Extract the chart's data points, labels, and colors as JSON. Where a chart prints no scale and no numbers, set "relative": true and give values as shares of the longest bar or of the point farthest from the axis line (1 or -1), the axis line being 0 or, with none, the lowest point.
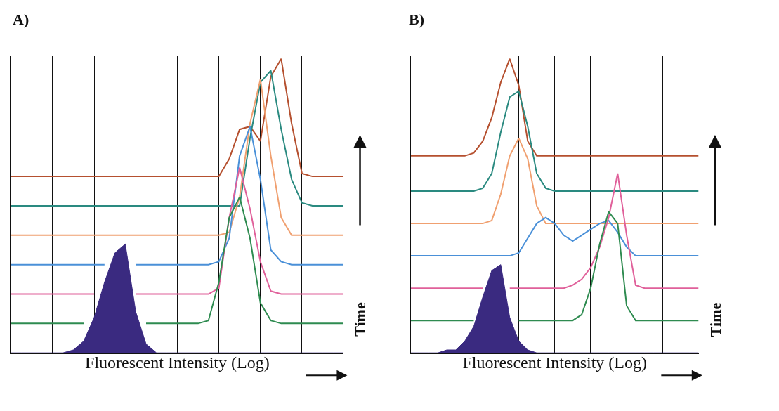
{
  "chart_data": [
    {
      "type": "line",
      "title": "A)",
      "xlabel": "Fluorescent Intensity (Log)",
      "ylabel": "Time",
      "relative": true,
      "grid": "x",
      "categories": [
        null,
        null,
        null,
        null,
        null,
        null,
        null,
        null,
        null,
        null,
        null,
        null,
        null,
        null,
        null,
        null,
        null,
        null,
        null,
        null,
        null,
        null,
        null,
        null,
        null,
        null,
        null,
        null,
        null,
        null,
        null,
        null,
        null
      ],
      "series": [
        {
          "color": "#b5502f",
          "values": [
            0.6,
            0.6,
            0.6,
            0.6,
            0.6,
            0.6,
            0.6,
            0.6,
            0.6,
            0.6,
            0.6,
            0.6,
            0.6,
            0.6,
            0.6,
            0.6,
            0.6,
            0.6,
            0.6,
            0.6,
            0.6,
            0.66,
            0.76,
            0.77,
            0.72,
            0.94,
            1.0,
            0.78,
            0.61,
            0.6,
            0.6,
            0.6,
            0.6
          ]
        },
        {
          "color": "#2a8a80",
          "values": [
            0.5,
            0.5,
            0.5,
            0.5,
            0.5,
            0.5,
            0.5,
            0.5,
            0.5,
            0.5,
            0.5,
            0.5,
            0.5,
            0.5,
            0.5,
            0.5,
            0.5,
            0.5,
            0.5,
            0.5,
            0.5,
            0.5,
            0.5,
            0.73,
            0.92,
            0.96,
            0.76,
            0.59,
            0.51,
            0.5,
            0.5,
            0.5,
            0.5
          ]
        },
        {
          "color": "#f0a070",
          "values": [
            0.4,
            0.4,
            0.4,
            0.4,
            0.4,
            0.4,
            0.4,
            0.4,
            0.4,
            0.4,
            0.4,
            0.4,
            0.4,
            0.4,
            0.4,
            0.4,
            0.4,
            0.4,
            0.4,
            0.4,
            0.4,
            0.41,
            0.53,
            0.78,
            0.93,
            0.67,
            0.46,
            0.4,
            0.4,
            0.4,
            0.4,
            0.4,
            0.4
          ]
        },
        {
          "color": "#4a90d8",
          "values": [
            0.3,
            0.3,
            0.3,
            0.3,
            0.3,
            0.3,
            0.3,
            0.3,
            0.3,
            0.3,
            null,
            null,
            0.3,
            0.3,
            0.3,
            0.3,
            0.3,
            0.3,
            0.3,
            0.3,
            0.31,
            0.39,
            0.67,
            0.77,
            0.59,
            0.35,
            0.31,
            0.3,
            0.3,
            0.3,
            0.3,
            0.3,
            0.3
          ]
        },
        {
          "color": "#e0609a",
          "values": [
            0.2,
            0.2,
            0.2,
            0.2,
            0.2,
            0.2,
            0.2,
            0.2,
            0.2,
            null,
            null,
            null,
            0.2,
            0.2,
            0.2,
            0.2,
            0.2,
            0.2,
            0.2,
            0.2,
            0.22,
            0.46,
            0.63,
            0.49,
            0.31,
            0.21,
            0.2,
            0.2,
            0.2,
            0.2,
            0.2,
            0.2,
            0.2
          ]
        },
        {
          "color": "#2e8b50",
          "values": [
            0.1,
            0.1,
            0.1,
            0.1,
            0.1,
            0.1,
            0.1,
            0.1,
            null,
            null,
            null,
            null,
            null,
            0.1,
            0.1,
            0.1,
            0.1,
            0.1,
            0.1,
            0.11,
            0.24,
            0.46,
            0.53,
            0.39,
            0.17,
            0.11,
            0.1,
            0.1,
            0.1,
            0.1,
            0.1,
            0.1,
            0.1
          ]
        },
        {
          "type": "area",
          "color": "#3a2a80",
          "values": [
            0,
            0,
            0,
            0,
            0,
            0,
            0.01,
            0.04,
            0.12,
            0.24,
            0.34,
            0.37,
            0.14,
            0.03,
            0,
            0,
            0,
            0,
            0,
            0,
            0,
            0,
            0,
            0,
            0,
            0,
            0,
            0,
            0,
            0,
            0,
            0,
            0
          ]
        }
      ]
    },
    {
      "type": "line",
      "title": "B)",
      "xlabel": "Fluorescent Intensity (Log)",
      "ylabel": "Time",
      "relative": true,
      "grid": "x",
      "categories": [
        null,
        null,
        null,
        null,
        null,
        null,
        null,
        null,
        null,
        null,
        null,
        null,
        null,
        null,
        null,
        null,
        null,
        null,
        null,
        null,
        null,
        null,
        null,
        null,
        null,
        null,
        null,
        null,
        null,
        null,
        null,
        null,
        null
      ],
      "series": [
        {
          "color": "#b5502f",
          "values": [
            0.67,
            0.67,
            0.67,
            0.67,
            0.67,
            0.67,
            0.67,
            0.68,
            0.72,
            0.8,
            0.92,
            1.0,
            0.91,
            0.72,
            0.67,
            0.67,
            0.67,
            0.67,
            0.67,
            0.67,
            0.67,
            0.67,
            0.67,
            0.67,
            0.67,
            0.67,
            0.67,
            0.67,
            0.67,
            0.67,
            0.67,
            0.67,
            0.67
          ]
        },
        {
          "color": "#2a8a80",
          "values": [
            0.55,
            0.55,
            0.55,
            0.55,
            0.55,
            0.55,
            0.55,
            0.55,
            0.56,
            0.61,
            0.75,
            0.87,
            0.89,
            0.77,
            0.61,
            0.56,
            0.55,
            0.55,
            0.55,
            0.55,
            0.55,
            0.55,
            0.55,
            0.55,
            0.55,
            0.55,
            0.55,
            0.55,
            0.55,
            0.55,
            0.55,
            0.55,
            0.55
          ]
        },
        {
          "color": "#f0a070",
          "values": [
            0.44,
            0.44,
            0.44,
            0.44,
            0.44,
            0.44,
            0.44,
            0.44,
            0.44,
            0.45,
            0.54,
            0.67,
            0.73,
            0.66,
            0.5,
            0.44,
            0.44,
            0.44,
            0.44,
            0.44,
            0.44,
            0.44,
            0.44,
            0.44,
            0.44,
            0.44,
            0.44,
            0.44,
            0.44,
            0.44,
            0.44,
            0.44,
            0.44
          ]
        },
        {
          "color": "#4a90d8",
          "values": [
            0.33,
            0.33,
            0.33,
            0.33,
            0.33,
            0.33,
            0.33,
            0.33,
            0.33,
            0.33,
            0.33,
            0.33,
            0.34,
            0.39,
            0.44,
            0.46,
            0.44,
            0.4,
            0.38,
            0.4,
            0.42,
            0.44,
            0.45,
            0.41,
            0.36,
            0.33,
            0.33,
            0.33,
            0.33,
            0.33,
            0.33,
            0.33,
            0.33
          ]
        },
        {
          "color": "#e0609a",
          "values": [
            0.22,
            0.22,
            0.22,
            0.22,
            0.22,
            0.22,
            0.22,
            0.22,
            0.22,
            null,
            null,
            0.22,
            0.22,
            0.22,
            0.22,
            0.22,
            0.22,
            0.22,
            0.23,
            0.25,
            0.29,
            0.36,
            0.46,
            0.61,
            0.4,
            0.23,
            0.22,
            0.22,
            0.22,
            0.22,
            0.22,
            0.22,
            0.22
          ]
        },
        {
          "color": "#2e8b50",
          "values": [
            0.11,
            0.11,
            0.11,
            0.11,
            0.11,
            0.11,
            0.11,
            0.11,
            null,
            null,
            null,
            null,
            0.11,
            0.11,
            0.11,
            0.11,
            0.11,
            0.11,
            0.11,
            0.13,
            0.22,
            0.37,
            0.48,
            0.44,
            0.16,
            0.11,
            0.11,
            0.11,
            0.11,
            0.11,
            0.11,
            0.11,
            0.11
          ]
        },
        {
          "type": "area",
          "color": "#3a2a80",
          "values": [
            0,
            0,
            0,
            0,
            0.01,
            0.01,
            0.04,
            0.09,
            0.19,
            0.28,
            0.3,
            0.12,
            0.04,
            0.01,
            0,
            0,
            0,
            0,
            0,
            0,
            0,
            0,
            0,
            0,
            0,
            0,
            0,
            0,
            0,
            0,
            0,
            0,
            0
          ]
        }
      ]
    }
  ]
}
